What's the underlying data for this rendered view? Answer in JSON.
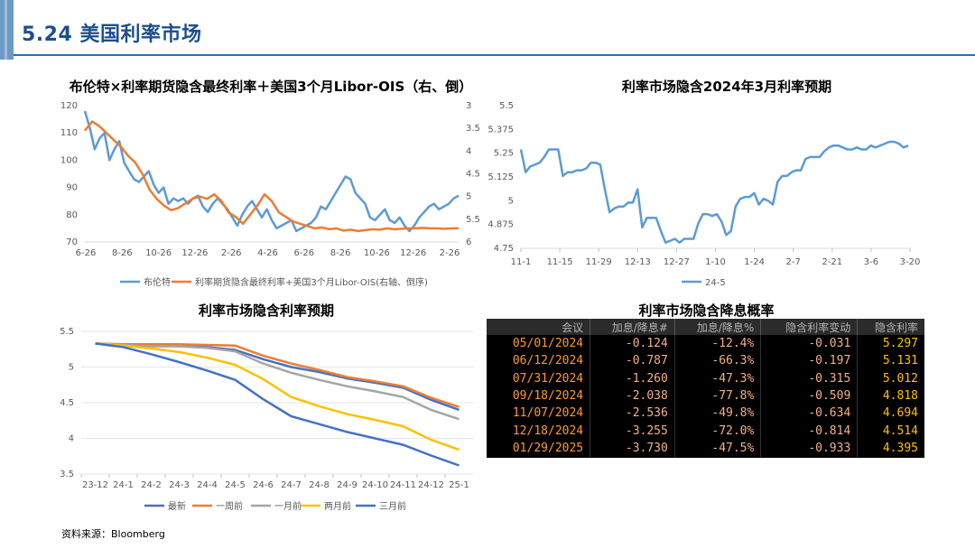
{
  "header": {
    "title": "5.24 美国利率市场"
  },
  "footnote": "资料来源：Bloomberg",
  "chart_data": [
    {
      "type": "line",
      "title": "布伦特×利率期货隐含最终利率＋美国3个月Libor-OIS（右、倒）",
      "x_ticks": [
        "6-26",
        "8-26",
        "10-26",
        "12-26",
        "2-26",
        "4-26",
        "6-26",
        "8-26",
        "10-26",
        "12-26",
        "2-26"
      ],
      "y_left_ticks": [
        70,
        80,
        90,
        100,
        110,
        120
      ],
      "y_left_range": [
        70,
        120
      ],
      "y_right_ticks": [
        3,
        3.5,
        4,
        4.5,
        5,
        5.5,
        6
      ],
      "y_right_range": [
        3,
        6
      ],
      "y_right_inverted": true,
      "series": [
        {
          "name": "布伦特",
          "axis": "left",
          "color": "#5b9bd5",
          "values": [
            118,
            112,
            104,
            108,
            110,
            100,
            104,
            107,
            99,
            96,
            93,
            92,
            94,
            96,
            91,
            88,
            90,
            84,
            86,
            85,
            86,
            84,
            86,
            87,
            83,
            81,
            84,
            86,
            84,
            82,
            79,
            76,
            80,
            83,
            85,
            82,
            79,
            82,
            78,
            75,
            76,
            77,
            78,
            74,
            75,
            76,
            77,
            79,
            83,
            82,
            85,
            88,
            91,
            94,
            93,
            88,
            86,
            84,
            79,
            78,
            80,
            82,
            78,
            77,
            79,
            76,
            74,
            76,
            79,
            81,
            83,
            84,
            82,
            83,
            84,
            86,
            87
          ]
        },
        {
          "name": "利率期货隐含最终利率+美国3个月Libor-OIS(右轴、倒序)",
          "axis": "right",
          "color": "#ed7d31",
          "values": [
            3.55,
            3.35,
            3.45,
            3.6,
            3.75,
            3.9,
            4.1,
            4.25,
            4.5,
            4.85,
            5.05,
            5.2,
            5.3,
            5.25,
            5.15,
            5.05,
            5.0,
            5.05,
            4.95,
            5.1,
            5.35,
            5.45,
            5.6,
            5.4,
            5.2,
            4.95,
            5.1,
            5.35,
            5.45,
            5.55,
            5.6,
            5.65,
            5.7,
            5.68,
            5.72,
            5.7,
            5.75,
            5.73,
            5.76,
            5.74,
            5.72,
            5.73,
            5.7,
            5.72,
            5.71,
            5.7,
            5.7,
            5.69,
            5.7,
            5.7,
            5.71,
            5.7,
            5.7
          ]
        }
      ],
      "legend": "bottom"
    },
    {
      "type": "line",
      "title": "利率市场隐含2024年3月利率预期",
      "x_ticks": [
        "11-1",
        "11-15",
        "11-29",
        "12-13",
        "12-27",
        "1-10",
        "1-24",
        "2-7",
        "2-21",
        "3-6",
        "3-20"
      ],
      "y_ticks": [
        4.75,
        4.875,
        5,
        5.125,
        5.25,
        5.375,
        5.5
      ],
      "ylim": [
        4.75,
        5.5
      ],
      "series": [
        {
          "name": "24-5",
          "color": "#5b9bd5",
          "values": [
            5.27,
            5.15,
            5.18,
            5.19,
            5.2,
            5.23,
            5.27,
            5.27,
            5.27,
            5.13,
            5.15,
            5.15,
            5.16,
            5.16,
            5.17,
            5.2,
            5.2,
            5.19,
            5.06,
            4.94,
            4.96,
            4.97,
            4.97,
            4.99,
            4.99,
            5.06,
            4.86,
            4.91,
            4.91,
            4.91,
            4.84,
            4.78,
            4.79,
            4.8,
            4.78,
            4.8,
            4.8,
            4.8,
            4.88,
            4.93,
            4.93,
            4.92,
            4.93,
            4.89,
            4.82,
            4.84,
            4.97,
            5.01,
            5.02,
            5.02,
            5.04,
            4.98,
            5.01,
            5.0,
            4.98,
            5.1,
            5.13,
            5.13,
            5.15,
            5.16,
            5.16,
            5.22,
            5.23,
            5.23,
            5.23,
            5.26,
            5.28,
            5.29,
            5.29,
            5.28,
            5.27,
            5.27,
            5.28,
            5.27,
            5.27,
            5.29,
            5.28,
            5.29,
            5.3,
            5.31,
            5.31,
            5.3,
            5.28,
            5.29
          ]
        }
      ],
      "legend": "bottom"
    },
    {
      "type": "line",
      "title": "利率市场隐含利率预期",
      "categories": [
        "23-12",
        "24-1",
        "24-2",
        "24-3",
        "24-4",
        "24-5",
        "24-6",
        "24-7",
        "24-8",
        "24-9",
        "24-10",
        "24-11",
        "24-12",
        "25-1"
      ],
      "y_ticks": [
        3.5,
        4,
        4.5,
        5,
        5.5
      ],
      "ylim": [
        3.5,
        5.5
      ],
      "series": [
        {
          "name": "最新",
          "color": "#4472c4",
          "values": [
            5.33,
            5.31,
            5.3,
            5.31,
            5.28,
            5.24,
            5.11,
            5.0,
            4.93,
            4.84,
            4.78,
            4.71,
            4.54,
            4.4
          ]
        },
        {
          "name": "一周前",
          "color": "#ed7d31",
          "values": [
            5.33,
            5.32,
            5.32,
            5.32,
            5.31,
            5.3,
            5.16,
            5.05,
            4.96,
            4.86,
            4.8,
            4.73,
            4.57,
            4.44
          ]
        },
        {
          "name": "一月前",
          "color": "#a5a5a5",
          "values": [
            5.33,
            5.31,
            5.29,
            5.29,
            5.27,
            5.22,
            5.05,
            4.92,
            4.82,
            4.73,
            4.66,
            4.58,
            4.4,
            4.27
          ]
        },
        {
          "name": "两月前",
          "color": "#ffc000",
          "values": [
            5.33,
            5.3,
            5.26,
            5.21,
            5.13,
            5.03,
            4.83,
            4.58,
            4.45,
            4.34,
            4.26,
            4.17,
            3.98,
            3.84
          ]
        },
        {
          "name": "三月前",
          "color": "#4472c4",
          "values": [
            5.33,
            5.28,
            5.18,
            5.07,
            4.95,
            4.82,
            4.55,
            4.31,
            4.2,
            4.09,
            4.0,
            3.91,
            3.76,
            3.62
          ]
        }
      ],
      "legend": "bottom"
    },
    {
      "type": "table",
      "title": "利率市场隐含降息概率",
      "columns": [
        "会议",
        "加息/降息#",
        "加息/降息%",
        "隐含利率变动",
        "隐含利率"
      ],
      "rows": [
        [
          "05/01/2024",
          "-0.124",
          "-12.4%",
          "-0.031",
          "5.297"
        ],
        [
          "06/12/2024",
          "-0.787",
          "-66.3%",
          "-0.197",
          "5.131"
        ],
        [
          "07/31/2024",
          "-1.260",
          "-47.3%",
          "-0.315",
          "5.012"
        ],
        [
          "09/18/2024",
          "-2.038",
          "-77.8%",
          "-0.509",
          "4.818"
        ],
        [
          "11/07/2024",
          "-2.536",
          "-49.8%",
          "-0.634",
          "4.694"
        ],
        [
          "12/18/2024",
          "-3.255",
          "-72.0%",
          "-0.814",
          "4.514"
        ],
        [
          "01/29/2025",
          "-3.730",
          "-47.5%",
          "-0.933",
          "4.395"
        ]
      ]
    }
  ]
}
